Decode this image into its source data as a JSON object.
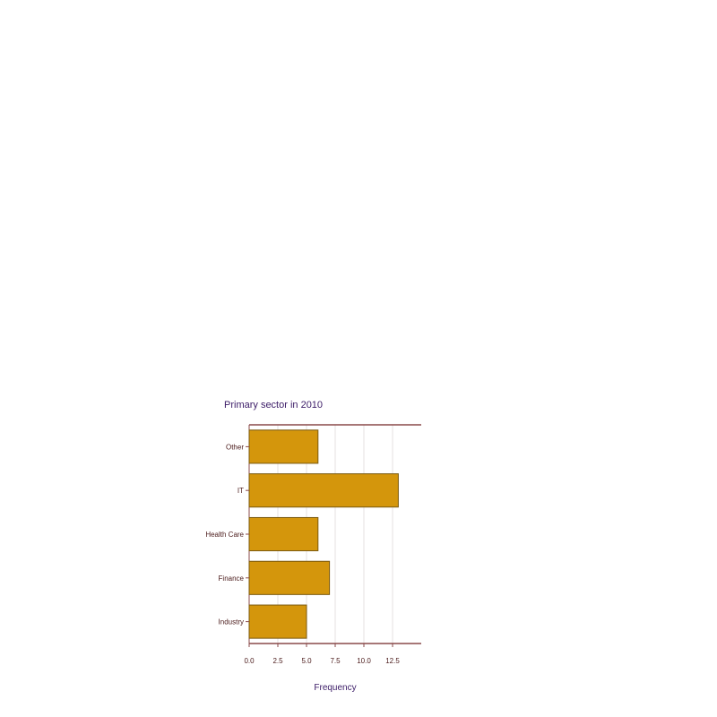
{
  "chart_data": {
    "type": "bar",
    "orientation": "horizontal",
    "title": "Primary sector in 2010",
    "xlabel": "Frequency",
    "ylabel": "",
    "categories": [
      "Other",
      "IT",
      "Health Care",
      "Finance",
      "Industry"
    ],
    "values": [
      6,
      13,
      6,
      7,
      5
    ],
    "xlim": [
      0,
      15
    ],
    "xticks": [
      "0.0",
      "2.5",
      "5.0",
      "7.5",
      "10.0",
      "12.5"
    ],
    "grid": true,
    "legend": "none",
    "colors": {
      "bar_fill": "#d4960c",
      "bar_stroke": "#7a5a10",
      "axis": "#8a4a4a",
      "grid": "#e6e0e0",
      "title": "#3a1a66",
      "tick_text": "#4a1a1a"
    }
  }
}
